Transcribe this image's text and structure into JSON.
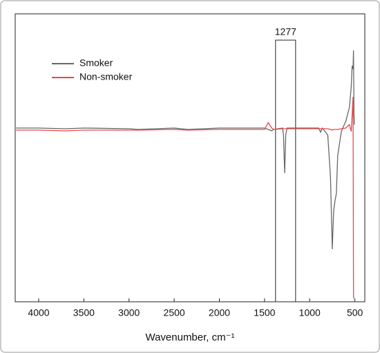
{
  "chart_data": {
    "type": "line",
    "xlabel": "Wavenumber, cm⁻¹",
    "x": [
      4250,
      4000,
      3700,
      3500,
      3000,
      2900,
      2500,
      2350,
      2000,
      1700,
      1500,
      1460,
      1420,
      1400,
      1300,
      1290,
      1277,
      1265,
      1250,
      1200,
      1000,
      900,
      880,
      860,
      800,
      770,
      750,
      735,
      720,
      705,
      690,
      650,
      600,
      560,
      540,
      530,
      520,
      515,
      510,
      505
    ],
    "series": [
      {
        "name": "Smoker",
        "color": "#666666",
        "values": [
          0,
          0,
          -0.01,
          0,
          -0.01,
          -0.02,
          0,
          -0.02,
          0,
          0,
          0,
          -0.02,
          -0.04,
          -0.02,
          0,
          -0.1,
          -0.65,
          -0.1,
          0,
          0,
          0,
          0,
          -0.06,
          0,
          -0.1,
          -0.7,
          -1.75,
          -1.2,
          -1.05,
          -0.95,
          -0.4,
          -0.05,
          0.1,
          0.3,
          0.6,
          0.9,
          0.85,
          1.12,
          0.2,
          0.05
        ]
      },
      {
        "name": "Non-smoker",
        "color": "#e8474a",
        "values": [
          -0.03,
          -0.03,
          -0.04,
          -0.03,
          -0.03,
          -0.03,
          -0.02,
          -0.03,
          -0.02,
          -0.02,
          -0.02,
          0.08,
          0,
          -0.02,
          -0.01,
          -0.01,
          -0.01,
          -0.01,
          -0.01,
          -0.01,
          -0.01,
          -0.01,
          -0.01,
          -0.01,
          -0.01,
          -0.02,
          -0.03,
          -0.02,
          -0.02,
          -0.02,
          -0.02,
          -0.01,
          0,
          0.05,
          -0.05,
          0.2,
          0.45,
          -2.45,
          -2.45,
          -2.45
        ]
      }
    ],
    "xlim": [
      4260,
      390
    ],
    "ylim": [
      -2.51,
      1.65
    ],
    "xticks": [
      4000,
      3500,
      3000,
      2500,
      2000,
      1500,
      1000,
      500
    ],
    "legend": "upper left",
    "annotation": {
      "text": "1277",
      "x_range": [
        1378,
        1156
      ],
      "y_top": 1.27
    }
  }
}
